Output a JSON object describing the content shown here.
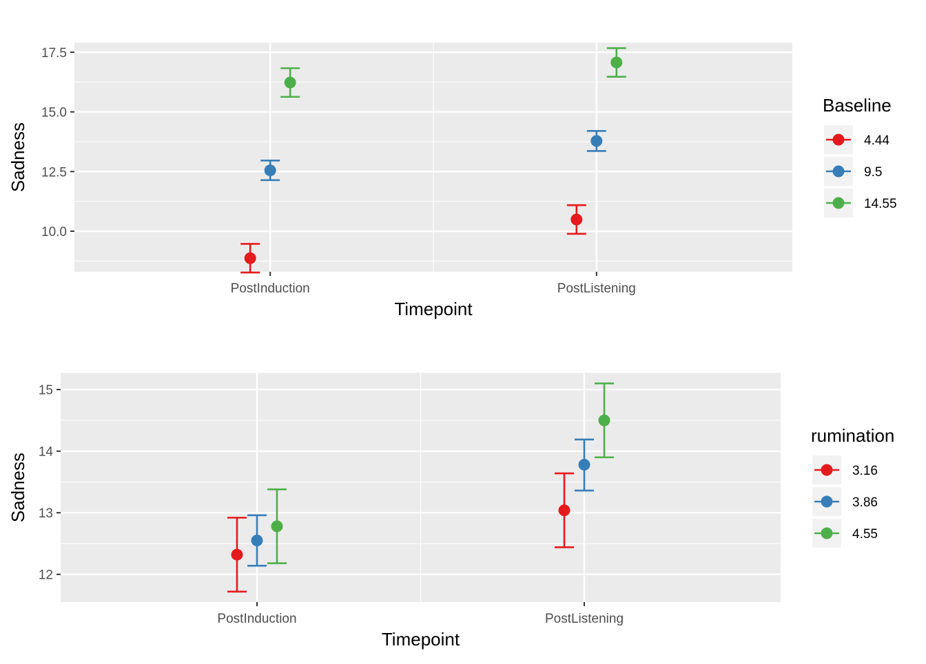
{
  "chart_data": [
    {
      "type": "scatter",
      "subtype": "point-errorbar",
      "xlabel": "Timepoint",
      "ylabel": "Sadness",
      "categories": [
        "PostInduction",
        "PostListening"
      ],
      "ylim": [
        8.3,
        17.9
      ],
      "yticks": [
        "10.0",
        "12.5",
        "15.0",
        "17.5"
      ],
      "grid": true,
      "legend": {
        "title": "Baseline",
        "position": "right"
      },
      "series": [
        {
          "name": "4.44",
          "color": "#E41A1C",
          "values": [
            8.87,
            10.49
          ],
          "lower": [
            8.27,
            9.89
          ],
          "upper": [
            9.47,
            11.09
          ]
        },
        {
          "name": "9.5",
          "color": "#377EB8",
          "values": [
            12.55,
            13.78
          ],
          "lower": [
            12.14,
            13.36
          ],
          "upper": [
            12.96,
            14.2
          ]
        },
        {
          "name": "14.55",
          "color": "#4DAF4A",
          "values": [
            16.23,
            17.07
          ],
          "lower": [
            15.63,
            16.47
          ],
          "upper": [
            16.83,
            17.67
          ]
        }
      ]
    },
    {
      "type": "scatter",
      "subtype": "point-errorbar",
      "xlabel": "Timepoint",
      "ylabel": "Sadness",
      "categories": [
        "PostInduction",
        "PostListening"
      ],
      "ylim": [
        11.55,
        15.27
      ],
      "yticks": [
        "12",
        "13",
        "14",
        "15"
      ],
      "grid": true,
      "legend": {
        "title": "rumination",
        "position": "right"
      },
      "series": [
        {
          "name": "3.16",
          "color": "#E41A1C",
          "values": [
            12.32,
            13.04
          ],
          "lower": [
            11.72,
            12.44
          ],
          "upper": [
            12.92,
            13.64
          ]
        },
        {
          "name": "3.86",
          "color": "#377EB8",
          "values": [
            12.55,
            13.78
          ],
          "lower": [
            12.14,
            13.36
          ],
          "upper": [
            12.96,
            14.19
          ]
        },
        {
          "name": "4.55",
          "color": "#4DAF4A",
          "values": [
            12.78,
            14.5
          ],
          "lower": [
            12.18,
            13.9
          ],
          "upper": [
            13.38,
            15.1
          ]
        }
      ]
    }
  ]
}
